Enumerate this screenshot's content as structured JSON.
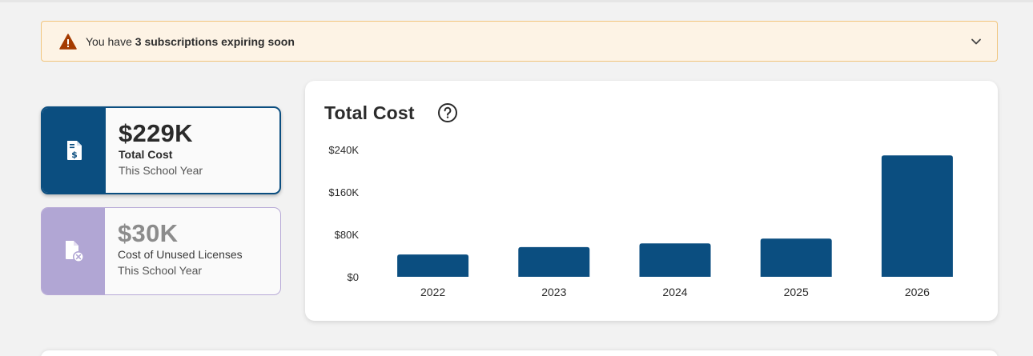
{
  "alert": {
    "prefix": "You have ",
    "emphasis": "3 subscriptions expiring soon",
    "icon": "warning-icon",
    "toggle_icon": "chevron-down-icon",
    "color": "#a43a00"
  },
  "kpis": [
    {
      "value": "$229K",
      "label": "Total Cost",
      "sub": "This School Year",
      "icon": "invoice-dollar-icon",
      "accent": "#0b4e80"
    },
    {
      "value": "$30K",
      "label": "Cost of Unused Licenses",
      "sub": "This School Year",
      "icon": "file-x-icon",
      "accent": "#b1a6d4"
    }
  ],
  "chart_card": {
    "title": "Total Cost",
    "help_icon": "help-circle-icon"
  },
  "chart_data": {
    "type": "bar",
    "title": "Total Cost",
    "categories": [
      "2022",
      "2023",
      "2024",
      "2025",
      "2026"
    ],
    "values": [
      42000,
      56000,
      63000,
      72000,
      229000
    ],
    "ylim": [
      0,
      240000
    ],
    "yticks": [
      0,
      80000,
      160000,
      240000
    ],
    "ytick_labels": [
      "$0",
      "$80K",
      "$160K",
      "$240K"
    ],
    "xlabel": "",
    "ylabel": "",
    "grid": false,
    "color": "#0b4e80"
  }
}
